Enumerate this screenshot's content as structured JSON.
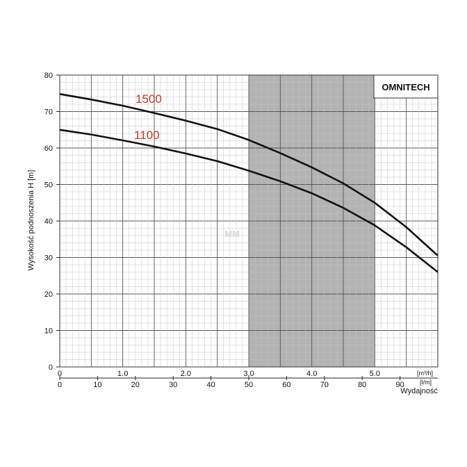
{
  "chart_data": {
    "type": "line",
    "brand": "OMNITECH",
    "watermark": "MM",
    "ylabel": "Wysokość podnoszenia H [m]",
    "xlabel": "Wydajność",
    "x_unit_top": "[m³/h]",
    "x_unit_bottom": "[l/m]",
    "ylim": [
      0,
      80
    ],
    "xlim": [
      0,
      6.0
    ],
    "y_ticks": [
      "0",
      "10",
      "20",
      "30",
      "40",
      "50",
      "60",
      "70",
      "80"
    ],
    "y_tick_values": [
      0,
      10,
      20,
      30,
      40,
      50,
      60,
      70,
      80
    ],
    "x_ticks_top": [
      "0",
      "1.0",
      "2.0",
      "3.0",
      "4.0",
      "5.0"
    ],
    "x_tick_values_top": [
      0,
      1,
      2,
      3,
      4,
      5
    ],
    "x_ticks_bottom": [
      "0",
      "10",
      "20",
      "30",
      "40",
      "50",
      "60",
      "70",
      "80",
      "90"
    ],
    "x_tick_values_bottom_m3h": [
      0,
      0.6,
      1.2,
      1.8,
      2.4,
      3.0,
      3.6,
      4.2,
      4.8,
      5.4
    ],
    "shaded_range_m3h": [
      3.0,
      5.0
    ],
    "grid": true,
    "series": [
      {
        "name": "1500",
        "color": "#111111",
        "label_color": "#c0392b",
        "x": [
          0,
          0.5,
          1.0,
          1.5,
          2.0,
          2.5,
          3.0,
          3.5,
          4.0,
          4.5,
          5.0,
          5.5,
          6.0
        ],
        "y": [
          74.8,
          73.3,
          71.6,
          69.6,
          67.5,
          65.2,
          62.2,
          58.6,
          54.7,
          50.3,
          45.0,
          38.3,
          30.5
        ]
      },
      {
        "name": "1100",
        "color": "#111111",
        "label_color": "#c0392b",
        "x": [
          0,
          0.5,
          1.0,
          1.5,
          2.0,
          2.5,
          3.0,
          3.5,
          4.0,
          4.5,
          5.0,
          5.5,
          6.0
        ],
        "y": [
          65.0,
          63.7,
          62.1,
          60.4,
          58.5,
          56.4,
          53.8,
          50.9,
          47.6,
          43.6,
          38.8,
          32.8,
          26.0
        ]
      }
    ]
  }
}
